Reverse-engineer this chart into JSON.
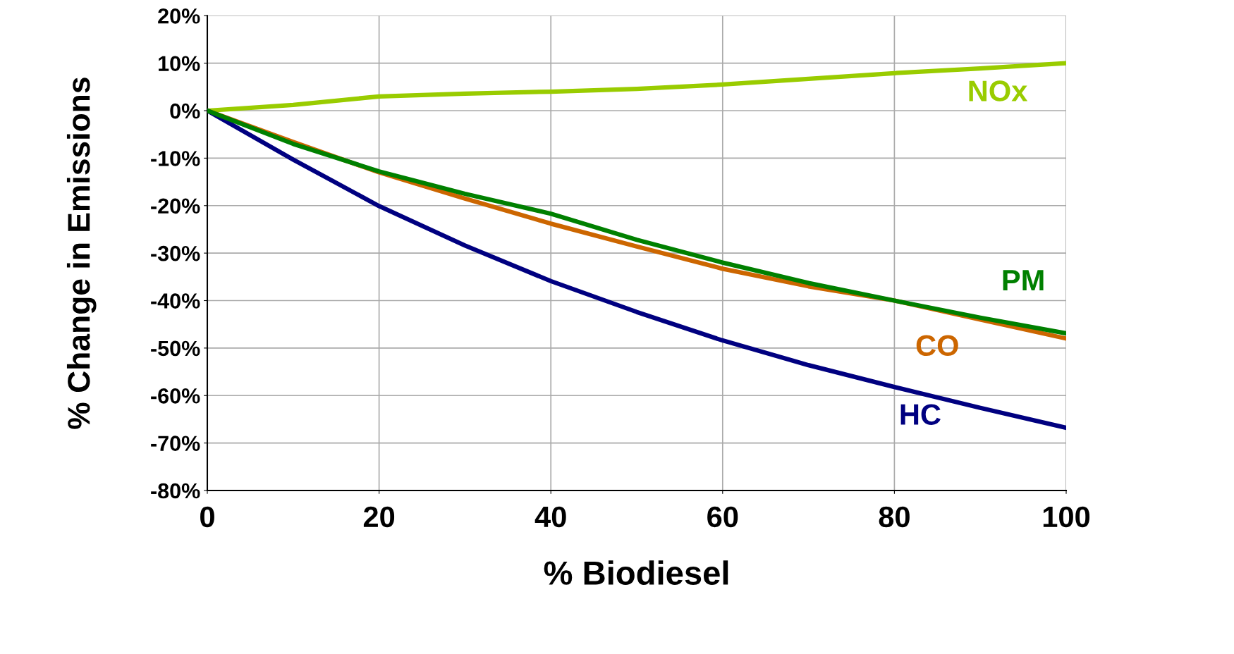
{
  "chart_data": {
    "type": "line",
    "xlabel": "% Biodiesel",
    "ylabel": "% Change in Emissions",
    "xlim": [
      0,
      100
    ],
    "xticks": [
      0,
      20,
      40,
      60,
      80,
      100
    ],
    "ylim": [
      -80,
      20
    ],
    "yticks": [
      {
        "value": -80,
        "label": "-80%"
      },
      {
        "value": -70,
        "label": "-70%"
      },
      {
        "value": -60,
        "label": "-60%"
      },
      {
        "value": -50,
        "label": "-50%"
      },
      {
        "value": -40,
        "label": "-40%"
      },
      {
        "value": -30,
        "label": "-30%"
      },
      {
        "value": -20,
        "label": "-20%"
      },
      {
        "value": -10,
        "label": "-10%"
      },
      {
        "value": 0,
        "label": "0%"
      },
      {
        "value": 10,
        "label": "10%"
      },
      {
        "value": 20,
        "label": "20%"
      }
    ],
    "grid": true,
    "marker": "none",
    "line_style": "solid",
    "x": [
      0,
      10,
      20,
      30,
      40,
      50,
      60,
      70,
      80,
      90,
      100
    ],
    "series": [
      {
        "name": "NOx",
        "color": "#99cc00",
        "values": [
          0,
          1.2,
          3.0,
          3.6,
          4.0,
          4.6,
          5.5,
          6.7,
          7.9,
          8.9,
          10.0
        ]
      },
      {
        "name": "CO",
        "color": "#cc6600",
        "values": [
          0,
          -6.6,
          -13.0,
          -18.5,
          -23.8,
          -28.6,
          -33.3,
          -37.0,
          -40.0,
          -44.0,
          -48.0
        ]
      },
      {
        "name": "PM",
        "color": "#008000",
        "values": [
          0,
          -7.0,
          -12.8,
          -17.5,
          -21.7,
          -27.2,
          -32.0,
          -36.3,
          -40.0,
          -43.6,
          -46.9
        ]
      },
      {
        "name": "HC",
        "color": "#000080",
        "values": [
          0,
          -10.3,
          -20.1,
          -28.4,
          -35.9,
          -42.4,
          -48.4,
          -53.6,
          -58.2,
          -62.6,
          -66.8
        ]
      }
    ]
  }
}
